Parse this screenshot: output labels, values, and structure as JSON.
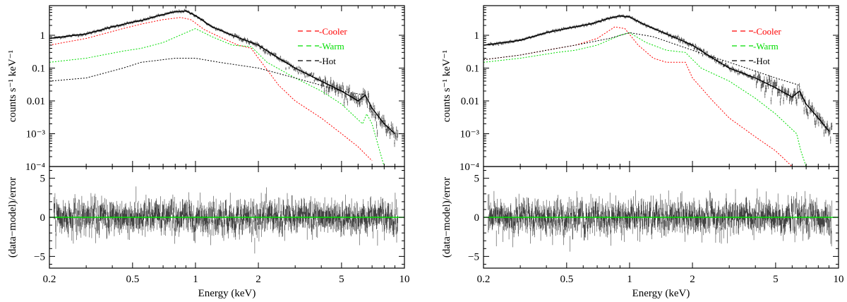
{
  "figure": {
    "panel_labels": {
      "energy_unit": "keV"
    }
  },
  "chart_data": [
    {
      "type": "line",
      "panel": "left",
      "xlabel": "Energy (keV)",
      "xscale": "log",
      "xlim": [
        0.2,
        10
      ],
      "xticks": [
        0.2,
        0.5,
        1,
        2,
        5,
        10
      ],
      "xtick_labels": [
        "0.2",
        "0.5",
        "1",
        "2",
        "5",
        "10"
      ],
      "top": {
        "ylabel": "counts s⁻¹ keV⁻¹",
        "yscale": "log",
        "ylim": [
          0.0001,
          8
        ],
        "yticks": [
          0.0001,
          0.001,
          0.01,
          0.1,
          1
        ],
        "ytick_labels": [
          "10⁻⁴",
          "10⁻³",
          "0.01",
          "0.1",
          "1"
        ],
        "legend_position": "top-right",
        "legend": [
          {
            "label": "-Cooler",
            "color": "#ff0000"
          },
          {
            "label": "-Warm",
            "color": "#00dd00"
          },
          {
            "label": "-Hot",
            "color": "#000000"
          }
        ],
        "series": [
          {
            "name": "-Cooler",
            "color": "#ff0000",
            "x": [
              0.2,
              0.3,
              0.45,
              0.55,
              0.7,
              0.85,
              0.95,
              1.1,
              1.3,
              1.6,
              1.85,
              2.0,
              2.5,
              3.0,
              4.0,
              5.0,
              6.0,
              7.0
            ],
            "y": [
              0.5,
              0.8,
              1.6,
              2.2,
              3.0,
              3.5,
              3.0,
              1.5,
              0.9,
              0.5,
              0.4,
              0.2,
              0.03,
              0.01,
              0.003,
              0.001,
              0.0004,
              0.00015
            ]
          },
          {
            "name": "-Warm",
            "color": "#00dd00",
            "x": [
              0.2,
              0.3,
              0.45,
              0.55,
              0.7,
              0.9,
              1.0,
              1.2,
              1.5,
              1.85,
              2.2,
              3.0,
              4.0,
              5.0,
              6.3,
              6.6,
              7.0,
              8.0
            ],
            "y": [
              0.15,
              0.2,
              0.33,
              0.4,
              0.6,
              1.2,
              1.6,
              0.9,
              0.5,
              0.45,
              0.15,
              0.05,
              0.02,
              0.008,
              0.002,
              0.004,
              0.002,
              0.0001
            ]
          },
          {
            "name": "-Hot",
            "color": "#000000",
            "x": [
              0.2,
              0.3,
              0.45,
              0.55,
              0.8,
              1.0,
              1.3,
              2.0,
              3.0,
              5.0,
              6.5
            ],
            "y": [
              0.04,
              0.05,
              0.1,
              0.15,
              0.2,
              0.2,
              0.15,
              0.1,
              0.05,
              0.02,
              0.015
            ]
          },
          {
            "name": "model",
            "color": "#000000",
            "x": [
              0.2,
              0.3,
              0.4,
              0.5,
              0.55,
              0.65,
              0.8,
              0.9,
              1.0,
              1.2,
              1.5,
              2.0,
              2.5,
              3.0,
              4.0,
              5.0,
              6.0,
              6.5,
              7.0,
              8.0,
              9.0
            ],
            "y": [
              0.8,
              1.1,
              1.8,
              2.5,
              2.8,
              3.8,
              5.2,
              5.5,
              4.0,
              1.8,
              1.0,
              0.5,
              0.2,
              0.1,
              0.04,
              0.02,
              0.01,
              0.015,
              0.006,
              0.002,
              0.001
            ]
          }
        ]
      },
      "bottom": {
        "ylabel": "(data−model)/error",
        "ylim": [
          -6.5,
          6.5
        ],
        "yticks": [
          -5,
          0,
          5
        ],
        "ytick_labels": [
          "−5",
          "0",
          "5"
        ],
        "zero_line_color": "#00dd00",
        "residual_spread": 1.5
      }
    },
    {
      "type": "line",
      "panel": "right",
      "xlabel": "Energy (keV)",
      "xscale": "log",
      "xlim": [
        0.2,
        10
      ],
      "xticks": [
        0.2,
        0.5,
        1,
        2,
        5,
        10
      ],
      "xtick_labels": [
        "0.2",
        "0.5",
        "1",
        "2",
        "5",
        "10"
      ],
      "top": {
        "ylabel": "counts s⁻¹ keV⁻¹",
        "yscale": "log",
        "ylim": [
          0.0001,
          8
        ],
        "yticks": [
          0.0001,
          0.001,
          0.01,
          0.1,
          1
        ],
        "ytick_labels": [
          "10⁻⁴",
          "10⁻³",
          "0.01",
          "0.1",
          "1"
        ],
        "legend_position": "top-right",
        "legend": [
          {
            "label": "-Cooler",
            "color": "#ff0000"
          },
          {
            "label": "-Warm",
            "color": "#00dd00"
          },
          {
            "label": "-Hot",
            "color": "#000000"
          }
        ],
        "series": [
          {
            "name": "-Cooler",
            "color": "#ff0000",
            "x": [
              0.2,
              0.3,
              0.45,
              0.55,
              0.7,
              0.85,
              0.95,
              1.1,
              1.3,
              1.5,
              1.85,
              2.0,
              2.5,
              3.0,
              4.0,
              5.0,
              6.0
            ],
            "y": [
              0.18,
              0.25,
              0.4,
              0.5,
              0.8,
              1.8,
              1.6,
              0.5,
              0.2,
              0.15,
              0.15,
              0.05,
              0.01,
              0.003,
              0.0008,
              0.0003,
              0.0001
            ]
          },
          {
            "name": "-Warm",
            "color": "#00dd00",
            "x": [
              0.2,
              0.3,
              0.45,
              0.55,
              0.7,
              0.9,
              1.0,
              1.2,
              1.5,
              1.85,
              2.2,
              3.0,
              4.0,
              5.0,
              6.3,
              6.6,
              7.0
            ],
            "y": [
              0.15,
              0.2,
              0.3,
              0.35,
              0.5,
              1.0,
              1.2,
              0.6,
              0.35,
              0.3,
              0.1,
              0.04,
              0.012,
              0.004,
              0.001,
              0.0003,
              0.0001
            ]
          },
          {
            "name": "-Hot",
            "color": "#000000",
            "x": [
              0.2,
              0.3,
              0.45,
              0.55,
              0.8,
              1.0,
              1.3,
              2.0,
              3.0,
              5.0,
              6.5
            ],
            "y": [
              0.18,
              0.25,
              0.4,
              0.5,
              0.8,
              1.2,
              0.9,
              0.35,
              0.15,
              0.05,
              0.03
            ]
          },
          {
            "name": "model",
            "color": "#000000",
            "x": [
              0.2,
              0.3,
              0.4,
              0.5,
              0.55,
              0.65,
              0.8,
              0.9,
              1.0,
              1.2,
              1.5,
              2.0,
              2.5,
              3.0,
              4.0,
              5.0,
              6.0,
              6.5,
              7.0,
              8.0,
              9.0
            ],
            "y": [
              0.5,
              0.7,
              1.2,
              1.6,
              1.8,
              2.2,
              3.3,
              3.9,
              3.6,
              2.0,
              1.1,
              0.5,
              0.2,
              0.1,
              0.05,
              0.025,
              0.013,
              0.02,
              0.008,
              0.003,
              0.0012
            ]
          }
        ]
      },
      "bottom": {
        "ylabel": "(data−model)/error",
        "ylim": [
          -6.5,
          6.5
        ],
        "yticks": [
          -5,
          0,
          5
        ],
        "ytick_labels": [
          "−5",
          "0",
          "5"
        ],
        "zero_line_color": "#00dd00",
        "residual_spread": 1.5
      }
    }
  ]
}
